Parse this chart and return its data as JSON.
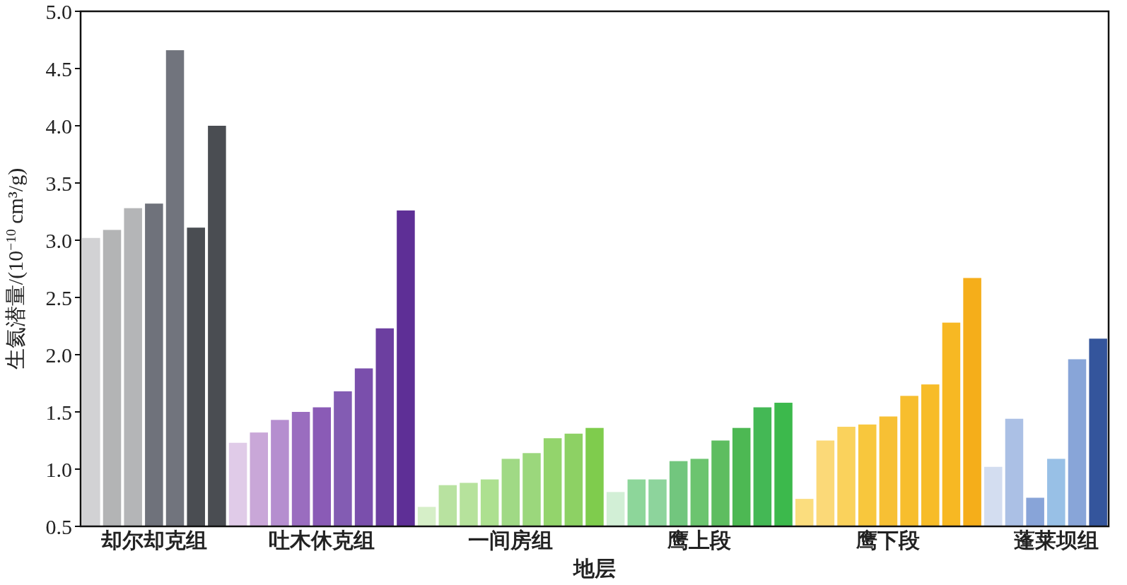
{
  "chart_data": {
    "type": "bar",
    "ylabel": "生氦潜量/(10$^{−10}$ cm³/g)",
    "xlabel": "地层",
    "categories": [
      null,
      null,
      null,
      "却尔却克组",
      null,
      null,
      null,
      null,
      null,
      null,
      null,
      "吐木休克组",
      null,
      null,
      null,
      null,
      null,
      null,
      null,
      null,
      "一间房组",
      null,
      null,
      null,
      null,
      null,
      null,
      null,
      null,
      "鹰上段",
      null,
      null,
      null,
      null,
      null,
      null,
      null,
      null,
      "鹰下段",
      null,
      null,
      null,
      null,
      null,
      null,
      null,
      "蓬莱坝组",
      null,
      null
    ],
    "values": [
      3.02,
      3.09,
      3.28,
      3.32,
      4.66,
      3.11,
      4.0,
      1.23,
      1.32,
      1.43,
      1.5,
      1.54,
      1.68,
      1.88,
      2.23,
      3.26,
      0.67,
      0.86,
      0.88,
      0.91,
      1.09,
      1.14,
      1.27,
      1.31,
      1.36,
      0.8,
      0.91,
      0.91,
      1.07,
      1.09,
      1.25,
      1.36,
      1.54,
      1.58,
      0.74,
      1.25,
      1.37,
      1.39,
      1.46,
      1.64,
      1.74,
      2.28,
      2.67,
      1.02,
      1.44,
      0.75,
      1.09,
      1.96,
      2.14
    ],
    "colors": [
      "#d2d2d4",
      "#b3b4b5",
      "#b4b5b7",
      "#6f727b",
      "#71747d",
      "#4a4d52",
      "#4a4d52",
      "#e0cbe8",
      "#c9a7d8",
      "#b58ecf",
      "#9a6dbf",
      "#8a5bb6",
      "#835cb3",
      "#7a4fac",
      "#6c3fa0",
      "#5e2f96",
      "#d6efc8",
      "#b8e2a0",
      "#b6e29c",
      "#ade090",
      "#a0d985",
      "#9bd77c",
      "#93d46c",
      "#8dd164",
      "#7fcc4d",
      "#d2efd6",
      "#8dd69a",
      "#8dd49c",
      "#72c67e",
      "#6cc46f",
      "#5ebd60",
      "#4db853",
      "#44b855",
      "#3cb94c",
      "#fbdd7e",
      "#fbd978",
      "#fad25c",
      "#f8c73d",
      "#f7c034",
      "#f7be2e",
      "#f7bc28",
      "#f7b823",
      "#f5ae1a",
      "#d3ddf0",
      "#abc0e5",
      "#88a4d8",
      "#98c0e6",
      "#88a5d8",
      "#34559c"
    ],
    "ylim": [
      0.5,
      5.0
    ],
    "yticks": [
      {
        "value": 0.5,
        "label": "0.5"
      },
      {
        "value": 1.0,
        "label": "1.0"
      },
      {
        "value": 1.5,
        "label": "1.5"
      },
      {
        "value": 2.0,
        "label": "2.0"
      },
      {
        "value": 2.5,
        "label": "2.5"
      },
      {
        "value": 3.0,
        "label": "3.0"
      },
      {
        "value": 3.5,
        "label": "3.5"
      },
      {
        "value": 4.0,
        "label": "4.0"
      },
      {
        "value": 4.5,
        "label": "4.5"
      },
      {
        "value": 5.0,
        "label": "5.0"
      }
    ],
    "grid": false
  }
}
